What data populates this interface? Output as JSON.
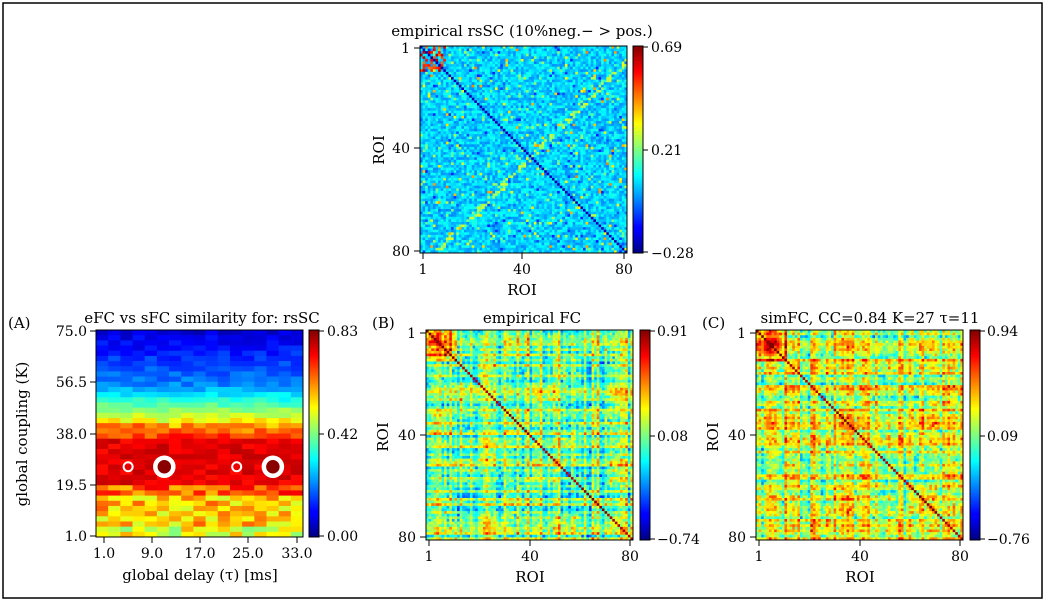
{
  "figure": {
    "panel_letters": [
      "(A)",
      "(B)",
      "(C)"
    ]
  },
  "colormap": "jet",
  "chart_data": [
    {
      "id": "rssc",
      "type": "heatmap",
      "title": "empirical rsSC (10%neg.− > pos.)",
      "xlabel": "ROI",
      "ylabel": "ROI",
      "n": 80,
      "xticks": [
        "1",
        "40",
        "80"
      ],
      "yticks": [
        "1",
        "40",
        "80"
      ],
      "colorbar": {
        "min": -0.28,
        "mid": 0.21,
        "max": 0.69,
        "labels": [
          "0.69",
          "0.21",
          "−0.28"
        ]
      },
      "pattern": "sparse-noise"
    },
    {
      "id": "sim",
      "type": "heatmap",
      "title": "eFC vs sFC similarity for: rsSC",
      "xlabel": "global delay (τ) [ms]",
      "ylabel": "global coupling (K)",
      "xticks": [
        "1.0",
        "9.0",
        "17.0",
        "25.0",
        "33.0"
      ],
      "yticks": [
        "75.0",
        "56.5",
        "38.0",
        "19.5",
        "1.0"
      ],
      "colorbar": {
        "min": 0.0,
        "mid": 0.42,
        "max": 0.83,
        "labels": [
          "0.83",
          "0.42",
          "0.00"
        ]
      },
      "grid_cols": 17,
      "grid_rows": 40,
      "pattern": "coupling-bands",
      "markers": [
        {
          "tau": 5,
          "K": 26,
          "kind": "small-ring"
        },
        {
          "tau": 11,
          "K": 26,
          "kind": "large-ring"
        },
        {
          "tau": 23,
          "K": 26,
          "kind": "small-ring"
        },
        {
          "tau": 29,
          "K": 26,
          "kind": "large-ring"
        }
      ]
    },
    {
      "id": "efc",
      "type": "heatmap",
      "title": "empirical FC",
      "xlabel": "ROI",
      "ylabel": "ROI",
      "n": 80,
      "xticks": [
        "1",
        "40",
        "80"
      ],
      "yticks": [
        "1",
        "40",
        "80"
      ],
      "colorbar": {
        "min": -0.74,
        "mid": 0.08,
        "max": 0.91,
        "labels": [
          "0.91",
          "0.08",
          "−0.74"
        ]
      },
      "pattern": "fc"
    },
    {
      "id": "simfc",
      "type": "heatmap",
      "title": "simFC, CC=0.84 K=27 τ=11",
      "xlabel": "ROI",
      "ylabel": "ROI",
      "n": 80,
      "xticks": [
        "1",
        "40",
        "80"
      ],
      "yticks": [
        "1",
        "40",
        "80"
      ],
      "colorbar": {
        "min": -0.76,
        "mid": 0.09,
        "max": 0.94,
        "labels": [
          "0.94",
          "0.09",
          "−0.76"
        ]
      },
      "pattern": "fc-sim"
    }
  ]
}
